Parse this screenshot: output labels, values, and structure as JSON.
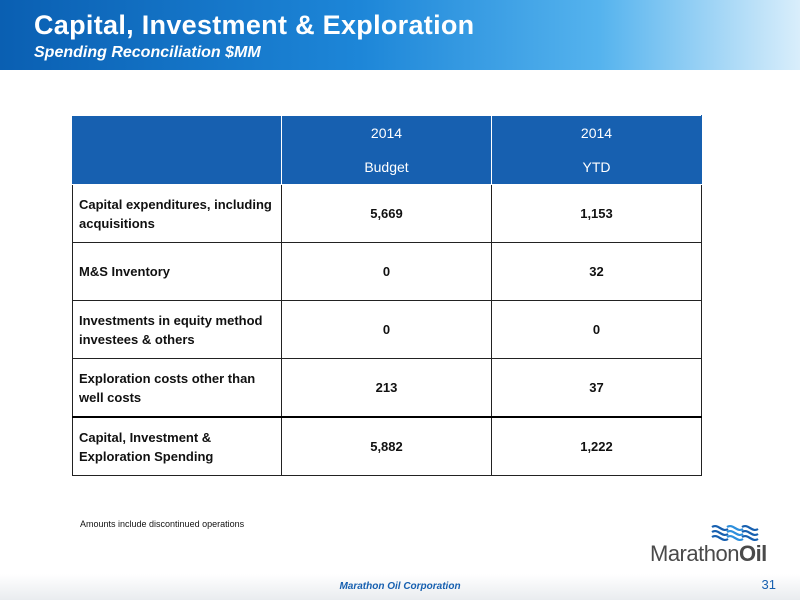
{
  "header": {
    "title": "Capital, Investment & Exploration",
    "subtitle": "Spending Reconciliation $MM"
  },
  "table": {
    "columns": [
      {
        "year": "2014",
        "label": "Budget"
      },
      {
        "year": "2014",
        "label": "YTD"
      }
    ],
    "rows": [
      {
        "label": "Capital expenditures, including acquisitions",
        "budget": "5,669",
        "ytd": "1,153"
      },
      {
        "label": "M&S Inventory",
        "budget": "0",
        "ytd": "32"
      },
      {
        "label": "Investments in equity method investees & others",
        "budget": "0",
        "ytd": "0"
      },
      {
        "label": "Exploration costs other than well costs",
        "budget": "213",
        "ytd": "37"
      }
    ],
    "total": {
      "label": "Capital, Investment & Exploration Spending",
      "budget": "5,882",
      "ytd": "1,222"
    }
  },
  "footnote": "Amounts include discontinued operations",
  "logo": {
    "text_light": "Marathon",
    "text_bold": "Oil"
  },
  "footer": {
    "company": "Marathon Oil Corporation",
    "page_number": "31"
  },
  "colors": {
    "brand_blue": "#1760b0",
    "header_gradient_start": "#0a5fb2",
    "header_gradient_end": "#d9eefb",
    "logo_gray": "#4a4a4a"
  }
}
